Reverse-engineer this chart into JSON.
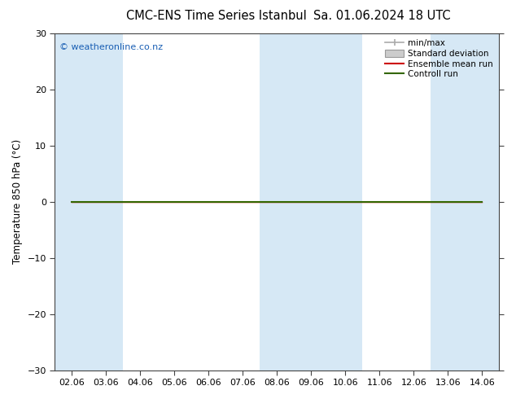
{
  "title_left": "CMC-ENS Time Series Istanbul",
  "title_right": "Sa. 01.06.2024 18 UTC",
  "ylabel": "Temperature 850 hPa (°C)",
  "ylim": [
    -30,
    30
  ],
  "yticks": [
    -30,
    -20,
    -10,
    0,
    10,
    20,
    30
  ],
  "xlabels": [
    "02.06",
    "03.06",
    "04.06",
    "05.06",
    "06.06",
    "07.06",
    "08.06",
    "09.06",
    "10.06",
    "11.06",
    "12.06",
    "13.06",
    "14.06"
  ],
  "x_values": [
    0,
    1,
    2,
    3,
    4,
    5,
    6,
    7,
    8,
    9,
    10,
    11,
    12
  ],
  "shaded_ranges": [
    [
      0,
      1
    ],
    [
      6,
      8
    ],
    [
      11,
      12
    ]
  ],
  "shade_color": "#d6e8f5",
  "mean_run_color": "#cc0000",
  "control_run_color": "#336600",
  "line_y": [
    0,
    0,
    0,
    0,
    0,
    0,
    0,
    0,
    0,
    0,
    0,
    0,
    0
  ],
  "watermark": "© weatheronline.co.nz",
  "watermark_color": "#1a5fb4",
  "background_color": "#ffffff",
  "legend_items": [
    "min/max",
    "Standard deviation",
    "Ensemble mean run",
    "Controll run"
  ],
  "legend_line_colors": [
    "#999999",
    "#cccccc",
    "#cc0000",
    "#336600"
  ],
  "figsize": [
    6.34,
    4.9
  ],
  "dpi": 100
}
